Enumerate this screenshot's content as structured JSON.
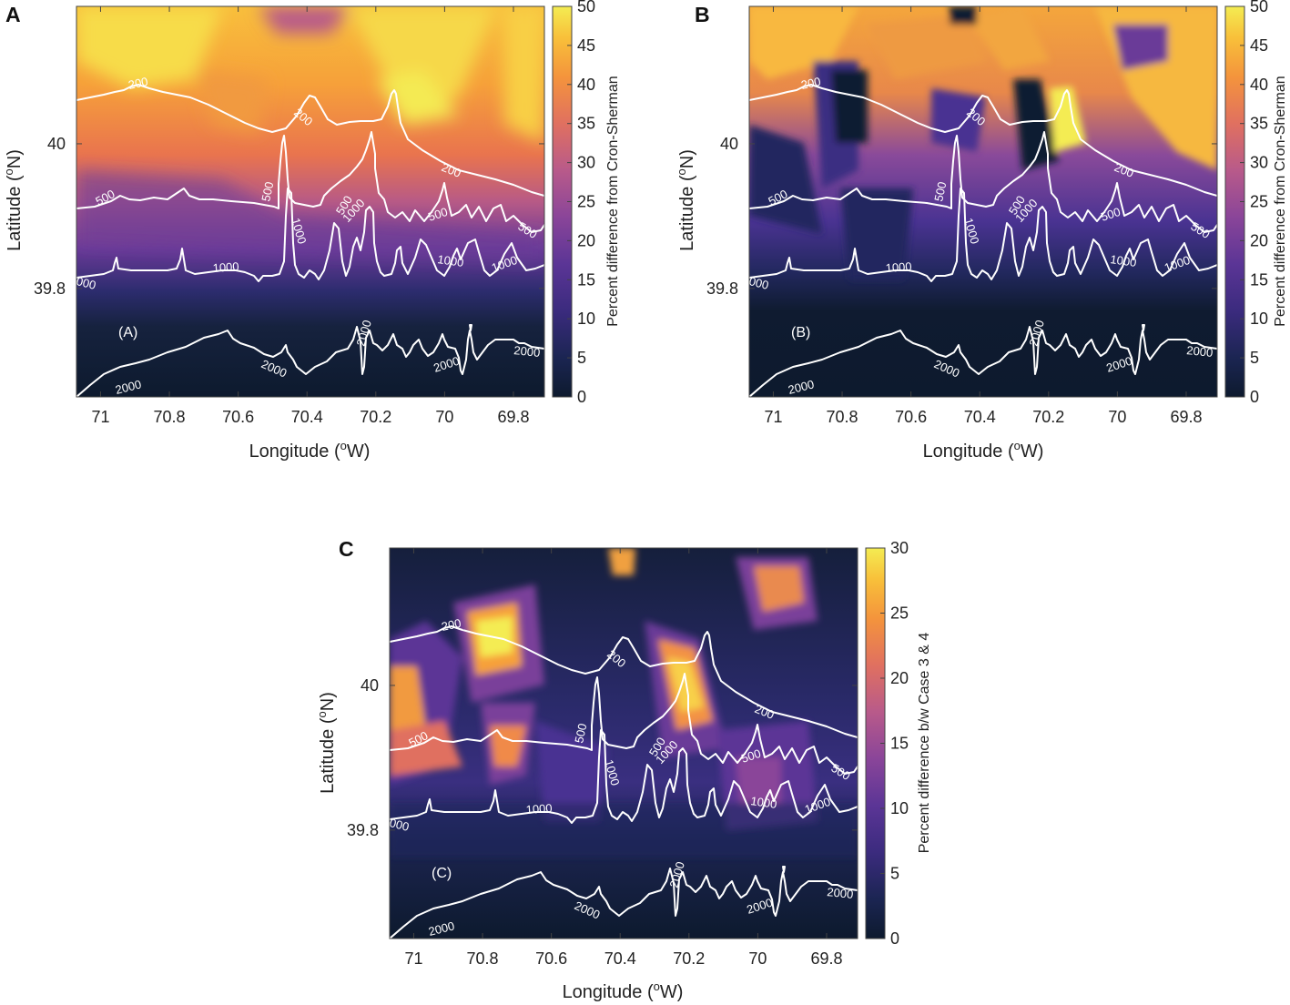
{
  "chart_data": [
    {
      "type": "heatmap",
      "id": "A",
      "panel_letter": "A",
      "inner_label": "(A)",
      "xlabel_prefix": "Longitude (",
      "xlabel_sup": "o",
      "xlabel_suffix": "W)",
      "ylabel_prefix": "Latitude (",
      "ylabel_sup": "o",
      "ylabel_suffix": "N)",
      "x_ticks": [
        "71",
        "70.8",
        "70.6",
        "70.4",
        "70.2",
        "70",
        "69.8"
      ],
      "x_tick_values": [
        71,
        70.8,
        70.6,
        70.4,
        70.2,
        70,
        69.8
      ],
      "y_ticks": [
        "40",
        "39.8"
      ],
      "y_tick_values": [
        40,
        39.8
      ],
      "xlim": [
        71.07,
        69.71
      ],
      "ylim": [
        39.65,
        40.19
      ],
      "colorbar": {
        "label": "Percent difference from Cron-Sherman",
        "ticks": [
          "0",
          "5",
          "10",
          "15",
          "20",
          "25",
          "30",
          "35",
          "40",
          "45",
          "50"
        ],
        "range": [
          0,
          50
        ]
      },
      "contour_levels": [
        "200",
        "500",
        "1000",
        "2000"
      ],
      "contour_labels": [
        "200",
        "200",
        "200",
        "500",
        "500",
        "500",
        "500",
        "500",
        "1000",
        "1000",
        "1000",
        "1000",
        "1000",
        "1000",
        "2000",
        "2000",
        "2000",
        "2000",
        "2000"
      ],
      "field_note": "High values (35-50%) north of the 200 m isobath, decreasing to ~0% south of the 1000 m isobath"
    },
    {
      "type": "heatmap",
      "id": "B",
      "panel_letter": "B",
      "inner_label": "(B)",
      "xlabel_prefix": "Longitude (",
      "xlabel_sup": "o",
      "xlabel_suffix": "W)",
      "ylabel_prefix": "Latitude (",
      "ylabel_sup": "o",
      "ylabel_suffix": "N)",
      "x_ticks": [
        "71",
        "70.8",
        "70.6",
        "70.4",
        "70.2",
        "70",
        "69.8"
      ],
      "x_tick_values": [
        71,
        70.8,
        70.6,
        70.4,
        70.2,
        70,
        69.8
      ],
      "y_ticks": [
        "40",
        "39.8"
      ],
      "y_tick_values": [
        40,
        39.8
      ],
      "xlim": [
        71.07,
        69.71
      ],
      "ylim": [
        39.65,
        40.19
      ],
      "colorbar": {
        "label": "Percent difference from Cron-Sherman",
        "ticks": [
          "0",
          "5",
          "10",
          "15",
          "20",
          "25",
          "30",
          "35",
          "40",
          "45",
          "50"
        ],
        "range": [
          0,
          50
        ]
      },
      "contour_levels": [
        "200",
        "500",
        "1000",
        "2000"
      ],
      "contour_labels": [
        "200",
        "200",
        "200",
        "500",
        "500",
        "500",
        "500",
        "500",
        "1000",
        "1000",
        "1000",
        "1000",
        "1000",
        "1000",
        "2000",
        "2000",
        "2000",
        "2000",
        "2000"
      ],
      "field_note": "High values (35-50%) on the shelf with dark low-value patches near 70.9W and 70.25W, near 0% over deep water"
    },
    {
      "type": "heatmap",
      "id": "C",
      "panel_letter": "C",
      "inner_label": "(C)",
      "xlabel_prefix": "Longitude (",
      "xlabel_sup": "o",
      "xlabel_suffix": "W)",
      "ylabel_prefix": "Latitude (",
      "ylabel_sup": "o",
      "ylabel_suffix": "N)",
      "x_ticks": [
        "71",
        "70.8",
        "70.6",
        "70.4",
        "70.2",
        "70",
        "69.8"
      ],
      "x_tick_values": [
        71,
        70.8,
        70.6,
        70.4,
        70.2,
        70,
        69.8
      ],
      "y_ticks": [
        "40",
        "39.8"
      ],
      "y_tick_values": [
        40,
        39.8
      ],
      "xlim": [
        71.07,
        69.71
      ],
      "ylim": [
        39.65,
        40.19
      ],
      "colorbar": {
        "label": "Percent difference b/w Case 3 & 4",
        "ticks": [
          "0",
          "5",
          "10",
          "15",
          "20",
          "25",
          "30"
        ],
        "range": [
          0,
          30
        ]
      },
      "contour_levels": [
        "200",
        "500",
        "1000",
        "2000"
      ],
      "contour_labels": [
        "200",
        "200",
        "200",
        "500",
        "500",
        "500",
        "500",
        "500",
        "1000",
        "1000",
        "1000",
        "1000",
        "1000",
        "1000",
        "2000",
        "2000",
        "2000",
        "2000",
        "2000"
      ],
      "field_note": "Mostly low values (0-10%) with localized maxima up to ~30% near 70.85W 40.06N and 70.22W 40.0N"
    }
  ]
}
